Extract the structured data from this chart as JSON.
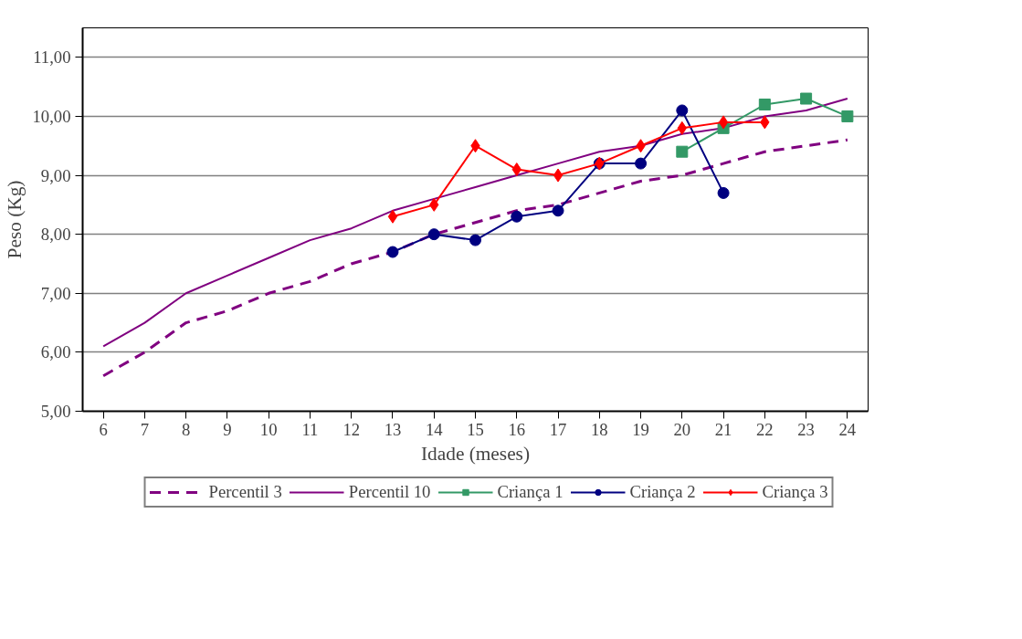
{
  "chart_data": {
    "type": "line",
    "xlabel": "Idade (meses)",
    "ylabel": "Peso (Kg)",
    "categories": [
      "6",
      "7",
      "8",
      "9",
      "10",
      "11",
      "12",
      "13",
      "14",
      "15",
      "16",
      "17",
      "18",
      "19",
      "20",
      "21",
      "22",
      "23",
      "24"
    ],
    "ylim": [
      5,
      11.5
    ],
    "yticks": [
      {
        "value": 5,
        "label": "5,00"
      },
      {
        "value": 6,
        "label": "6,00"
      },
      {
        "value": 7,
        "label": "7,00"
      },
      {
        "value": 8,
        "label": "8,00"
      },
      {
        "value": 9,
        "label": "9,00"
      },
      {
        "value": 10,
        "label": "10,00"
      },
      {
        "value": 11,
        "label": "11,00"
      }
    ],
    "grid": "y",
    "legend": "bottom",
    "series": [
      {
        "name": "Percentil 3",
        "color": "#800080",
        "line_style": "dashed",
        "marker": "none",
        "values": [
          5.6,
          6.0,
          6.5,
          6.7,
          7.0,
          7.2,
          7.5,
          7.7,
          8.0,
          8.2,
          8.4,
          8.5,
          8.7,
          8.9,
          9.0,
          9.2,
          9.4,
          9.5,
          9.6
        ]
      },
      {
        "name": "Percentil 10",
        "color": "#800080",
        "line_style": "solid",
        "marker": "none",
        "values": [
          6.1,
          6.5,
          7.0,
          7.3,
          7.6,
          7.9,
          8.1,
          8.4,
          8.6,
          8.8,
          9.0,
          9.2,
          9.4,
          9.5,
          9.7,
          9.8,
          10.0,
          10.1,
          10.3
        ]
      },
      {
        "name": "Criança 1",
        "color": "#339966",
        "line_style": "solid",
        "marker": "square",
        "values": [
          null,
          null,
          null,
          null,
          null,
          null,
          null,
          null,
          null,
          null,
          null,
          null,
          null,
          null,
          9.4,
          9.8,
          10.2,
          10.3,
          10.0
        ]
      },
      {
        "name": "Criança 2",
        "color": "#000080",
        "line_style": "solid",
        "marker": "circle",
        "values": [
          null,
          null,
          null,
          null,
          null,
          null,
          null,
          7.7,
          8.0,
          7.9,
          8.3,
          8.4,
          9.2,
          9.2,
          10.1,
          8.7,
          null,
          null,
          null
        ]
      },
      {
        "name": "Criança 3",
        "color": "#ff0000",
        "line_style": "solid",
        "marker": "diamond",
        "values": [
          null,
          null,
          null,
          null,
          null,
          null,
          null,
          8.3,
          8.5,
          9.5,
          9.1,
          9.0,
          9.2,
          9.5,
          9.8,
          9.9,
          9.9,
          null,
          null
        ]
      }
    ]
  }
}
